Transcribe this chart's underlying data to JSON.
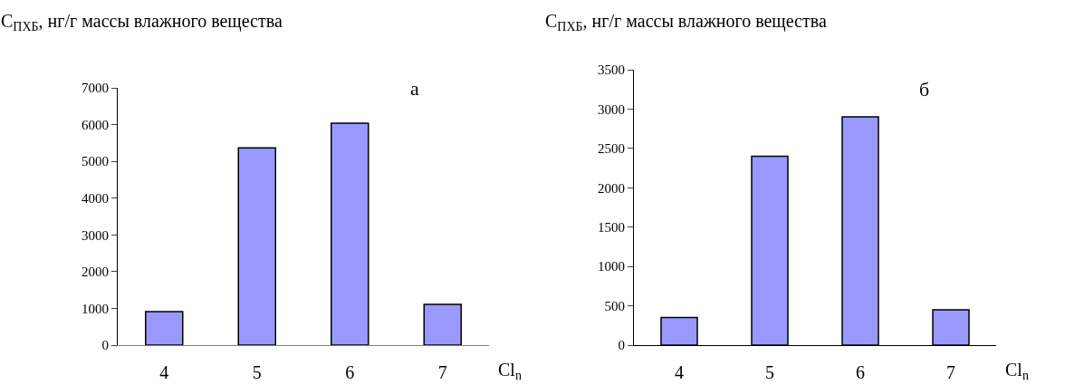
{
  "chart_data": [
    {
      "type": "bar",
      "ylabel": "C$_{ПХБ}$, нг/г массы влажного вещества",
      "xlabel": "Cl$_{n}$",
      "annotations": [
        "а"
      ],
      "categories": [
        "4",
        "5",
        "6",
        "7"
      ],
      "values": [
        910,
        5370,
        6040,
        1110
      ],
      "color": "#9999ff",
      "ylim": [
        0,
        7000
      ],
      "yticks": [
        0,
        1000,
        2000,
        3000,
        4000,
        5000,
        6000,
        7000
      ],
      "grid": false,
      "legend": false
    },
    {
      "type": "bar",
      "ylabel": "C$_{ПХБ}$, нг/г массы влажного вещества",
      "xlabel": "Cl$_{n}$",
      "annotations": [
        "б"
      ],
      "categories": [
        "4",
        "5",
        "6",
        "7"
      ],
      "values": [
        350,
        2400,
        2900,
        450
      ],
      "color": "#9999ff",
      "ylim": [
        0,
        3500
      ],
      "yticks": [
        0,
        500,
        1000,
        1500,
        2000,
        2500,
        3000,
        3500
      ],
      "grid": false,
      "legend": false
    }
  ]
}
